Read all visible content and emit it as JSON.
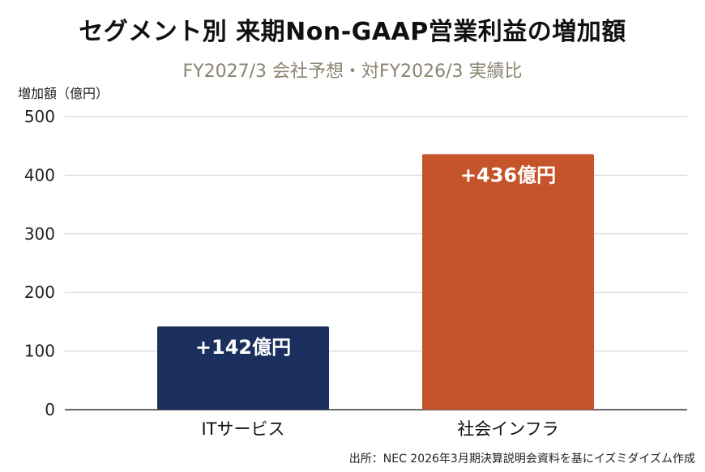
{
  "chart_data": {
    "type": "bar",
    "title": "セグメント別 来期Non-GAAP営業利益の増加額",
    "subtitle": "FY2027/3 会社予想・対FY2026/3 実績比",
    "ylabel": "増加額（億円）",
    "categories": [
      "ITサービス",
      "社会インフラ"
    ],
    "values": [
      142,
      436
    ],
    "data_labels": [
      "+142億円",
      "+436億円"
    ],
    "colors": [
      "#1b2f5e",
      "#c5542a"
    ],
    "ylim": [
      0,
      500
    ],
    "yticks": [
      "0",
      "100",
      "200",
      "300",
      "400",
      "500"
    ],
    "grid": true,
    "source": "出所：NEC 2026年3月期決算説明会資料を基にイズミダイズム作成"
  }
}
